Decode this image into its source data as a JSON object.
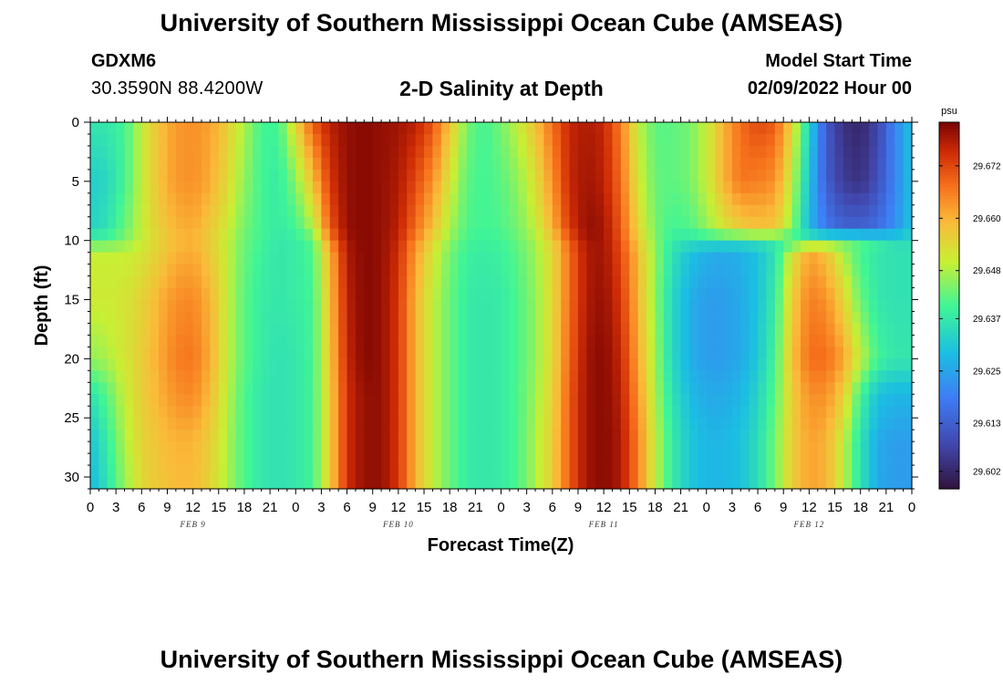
{
  "header": {
    "title": "University of Southern Mississippi Ocean Cube (AMSEAS)",
    "station": "GDXM6",
    "coordinates": "30.3590N  88.4200W",
    "subtitle": "2-D Salinity at Depth",
    "model_start_label": "Model Start Time",
    "model_start_value": "02/09/2022 Hour 00"
  },
  "footer": {
    "title": "University of Southern Mississippi Ocean Cube (AMSEAS)"
  },
  "chart_data": {
    "type": "heatmap",
    "title": "2-D Salinity at Depth",
    "xlabel": "Forecast Time(Z)",
    "ylabel": "Depth (ft)",
    "x_units": "hours since model start",
    "xlim": [
      0,
      96
    ],
    "ylim": [
      0,
      31
    ],
    "y_inverted": true,
    "x_ticks": [
      0,
      3,
      6,
      9,
      12,
      15,
      18,
      21,
      24,
      27,
      30,
      33,
      36,
      39,
      42,
      45,
      48,
      51,
      54,
      57,
      60,
      63,
      66,
      69,
      72,
      75,
      78,
      81,
      84,
      87,
      90,
      93,
      96
    ],
    "x_tick_labels": [
      "0",
      "3",
      "6",
      "9",
      "12",
      "15",
      "18",
      "21",
      "0",
      "3",
      "6",
      "9",
      "12",
      "15",
      "18",
      "21",
      "0",
      "3",
      "6",
      "9",
      "12",
      "15",
      "18",
      "21",
      "0",
      "3",
      "6",
      "9",
      "12",
      "15",
      "18",
      "21",
      "0"
    ],
    "date_labels": [
      {
        "hour": 12,
        "label": "FEB 9"
      },
      {
        "hour": 36,
        "label": "FEB 10"
      },
      {
        "hour": 60,
        "label": "FEB 11"
      },
      {
        "hour": 84,
        "label": "FEB 12"
      }
    ],
    "y_ticks": [
      0,
      5,
      10,
      15,
      20,
      25,
      30
    ],
    "y_tick_labels": [
      "0",
      "5",
      "10",
      "15",
      "20",
      "25",
      "30"
    ],
    "colorbar": {
      "units": "psu",
      "min": 29.598,
      "max": 29.682,
      "tick_values": [
        29.602,
        29.613,
        29.625,
        29.637,
        29.648,
        29.66,
        29.672
      ],
      "tick_labels": [
        "29.602",
        "29.613",
        "29.625",
        "29.637",
        "29.648",
        "29.660",
        "29.672"
      ]
    },
    "depths_ft": [
      0,
      5,
      9,
      10,
      11,
      15,
      20,
      23,
      27,
      31
    ],
    "hours": [
      0,
      2,
      4,
      6,
      8,
      10,
      12,
      14,
      16,
      18,
      20,
      22,
      24,
      26,
      28,
      30,
      32,
      34,
      36,
      38,
      40,
      42,
      44,
      46,
      48,
      50,
      52,
      54,
      56,
      58,
      60,
      62,
      64,
      66,
      68,
      70,
      72,
      74,
      76,
      78,
      80,
      82,
      84,
      86,
      88,
      90,
      92,
      94,
      96
    ],
    "values_psu": [
      [
        29.637,
        29.637,
        29.64,
        29.65,
        29.658,
        29.663,
        29.664,
        29.662,
        29.656,
        29.648,
        29.64,
        29.64,
        29.655,
        29.67,
        29.677,
        29.68,
        29.681,
        29.68,
        29.679,
        29.677,
        29.671,
        29.658,
        29.644,
        29.64,
        29.644,
        29.65,
        29.658,
        29.668,
        29.676,
        29.678,
        29.676,
        29.666,
        29.65,
        29.642,
        29.642,
        29.644,
        29.65,
        29.66,
        29.668,
        29.672,
        29.67,
        29.655,
        29.633,
        29.612,
        29.604,
        29.602,
        29.608,
        29.62,
        29.63
      ],
      [
        29.632,
        29.634,
        29.64,
        29.65,
        29.658,
        29.663,
        29.664,
        29.661,
        29.654,
        29.646,
        29.64,
        29.638,
        29.645,
        29.658,
        29.674,
        29.68,
        29.681,
        29.68,
        29.678,
        29.672,
        29.664,
        29.652,
        29.642,
        29.64,
        29.642,
        29.646,
        29.653,
        29.664,
        29.676,
        29.679,
        29.677,
        29.668,
        29.652,
        29.643,
        29.642,
        29.644,
        29.65,
        29.66,
        29.667,
        29.666,
        29.664,
        29.65,
        29.63,
        29.613,
        29.606,
        29.604,
        29.61,
        29.62,
        29.63
      ],
      [
        29.633,
        29.636,
        29.643,
        29.65,
        29.656,
        29.66,
        29.661,
        29.657,
        29.651,
        29.644,
        29.64,
        29.638,
        29.64,
        29.648,
        29.67,
        29.68,
        29.681,
        29.68,
        29.677,
        29.668,
        29.658,
        29.648,
        29.641,
        29.64,
        29.641,
        29.644,
        29.65,
        29.66,
        29.674,
        29.68,
        29.679,
        29.67,
        29.655,
        29.644,
        29.64,
        29.641,
        29.646,
        29.652,
        29.656,
        29.658,
        29.657,
        29.646,
        29.628,
        29.618,
        29.614,
        29.614,
        29.616,
        29.622,
        29.63
      ],
      [
        29.64,
        29.641,
        29.645,
        29.65,
        29.655,
        29.659,
        29.66,
        29.656,
        29.65,
        29.643,
        29.64,
        29.637,
        29.638,
        29.642,
        29.665,
        29.679,
        29.681,
        29.68,
        29.676,
        29.665,
        29.655,
        29.646,
        29.64,
        29.639,
        29.64,
        29.643,
        29.648,
        29.656,
        29.67,
        29.679,
        29.679,
        29.671,
        29.657,
        29.645,
        29.638,
        29.636,
        29.636,
        29.636,
        29.636,
        29.637,
        29.638,
        29.638,
        29.64,
        29.642,
        29.643,
        29.642,
        29.639,
        29.635,
        29.635
      ],
      [
        29.65,
        29.65,
        29.65,
        29.652,
        29.656,
        29.66,
        29.661,
        29.657,
        29.65,
        29.643,
        29.639,
        29.637,
        29.638,
        29.641,
        29.66,
        29.678,
        29.681,
        29.68,
        29.675,
        29.663,
        29.652,
        29.644,
        29.639,
        29.638,
        29.639,
        29.642,
        29.647,
        29.654,
        29.668,
        29.678,
        29.679,
        29.672,
        29.659,
        29.646,
        29.636,
        29.63,
        29.627,
        29.626,
        29.627,
        29.63,
        29.636,
        29.652,
        29.662,
        29.658,
        29.648,
        29.64,
        29.637,
        29.636,
        29.636
      ],
      [
        29.651,
        29.651,
        29.652,
        29.655,
        29.66,
        29.664,
        29.665,
        29.66,
        29.65,
        29.642,
        29.638,
        29.637,
        29.638,
        29.64,
        29.658,
        29.677,
        29.681,
        29.68,
        29.674,
        29.66,
        29.65,
        29.643,
        29.638,
        29.637,
        29.638,
        29.641,
        29.646,
        29.654,
        29.668,
        29.678,
        29.68,
        29.674,
        29.66,
        29.646,
        29.634,
        29.627,
        29.624,
        29.624,
        29.626,
        29.63,
        29.638,
        29.656,
        29.666,
        29.664,
        29.655,
        29.643,
        29.637,
        29.636,
        29.636
      ],
      [
        29.646,
        29.648,
        29.652,
        29.656,
        29.661,
        29.666,
        29.667,
        29.661,
        29.65,
        29.642,
        29.638,
        29.636,
        29.637,
        29.64,
        29.657,
        29.676,
        29.681,
        29.68,
        29.674,
        29.66,
        29.65,
        29.643,
        29.638,
        29.637,
        29.638,
        29.641,
        29.646,
        29.654,
        29.669,
        29.679,
        29.681,
        29.676,
        29.662,
        29.647,
        29.634,
        29.627,
        29.624,
        29.624,
        29.626,
        29.631,
        29.64,
        29.658,
        29.668,
        29.668,
        29.662,
        29.65,
        29.64,
        29.637,
        29.637
      ],
      [
        29.636,
        29.642,
        29.65,
        29.656,
        29.66,
        29.664,
        29.665,
        29.659,
        29.649,
        29.641,
        29.637,
        29.636,
        29.637,
        29.64,
        29.656,
        29.675,
        29.68,
        29.68,
        29.674,
        29.66,
        29.65,
        29.643,
        29.638,
        29.637,
        29.638,
        29.641,
        29.647,
        29.655,
        29.67,
        29.679,
        29.681,
        29.677,
        29.664,
        29.648,
        29.636,
        29.629,
        29.626,
        29.626,
        29.628,
        29.633,
        29.642,
        29.656,
        29.664,
        29.664,
        29.656,
        29.64,
        29.63,
        29.628,
        29.628
      ],
      [
        29.63,
        29.638,
        29.648,
        29.655,
        29.658,
        29.66,
        29.66,
        29.656,
        29.648,
        29.641,
        29.637,
        29.636,
        29.637,
        29.64,
        29.656,
        29.675,
        29.68,
        29.68,
        29.674,
        29.66,
        29.65,
        29.643,
        29.638,
        29.637,
        29.638,
        29.641,
        29.648,
        29.656,
        29.67,
        29.679,
        29.681,
        29.678,
        29.666,
        29.65,
        29.638,
        29.631,
        29.628,
        29.628,
        29.63,
        29.635,
        29.644,
        29.656,
        29.662,
        29.66,
        29.65,
        29.636,
        29.626,
        29.624,
        29.624
      ],
      [
        29.628,
        29.636,
        29.646,
        29.654,
        29.657,
        29.659,
        29.659,
        29.655,
        29.648,
        29.641,
        29.637,
        29.636,
        29.637,
        29.64,
        29.656,
        29.675,
        29.68,
        29.68,
        29.674,
        29.66,
        29.65,
        29.643,
        29.638,
        29.637,
        29.638,
        29.641,
        29.648,
        29.656,
        29.67,
        29.679,
        29.681,
        29.678,
        29.666,
        29.65,
        29.638,
        29.631,
        29.628,
        29.628,
        29.63,
        29.635,
        29.644,
        29.656,
        29.662,
        29.66,
        29.65,
        29.636,
        29.626,
        29.624,
        29.624
      ]
    ]
  }
}
